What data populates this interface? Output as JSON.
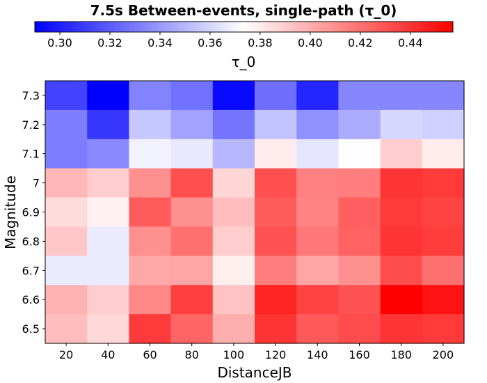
{
  "chart_data": {
    "type": "heatmap",
    "title": "7.5s Between-events, single-path (τ_0)",
    "xlabel": "DistanceJB",
    "ylabel": "Magnitude",
    "x_categories": [
      "20",
      "40",
      "60",
      "80",
      "100",
      "120",
      "140",
      "160",
      "180",
      "200"
    ],
    "y_categories": [
      "7.3",
      "7.2",
      "7.1",
      "7",
      "6.9",
      "6.8",
      "6.7",
      "6.6",
      "6.5"
    ],
    "values": [
      [
        0.312,
        0.29,
        0.333,
        0.327,
        0.293,
        0.326,
        0.302,
        0.334,
        0.334,
        0.334
      ],
      [
        0.331,
        0.308,
        0.355,
        0.343,
        0.328,
        0.354,
        0.337,
        0.346,
        0.36,
        0.358
      ],
      [
        0.331,
        0.335,
        0.369,
        0.366,
        0.35,
        0.38,
        0.365,
        0.373,
        0.39,
        0.38
      ],
      [
        0.397,
        0.39,
        0.41,
        0.431,
        0.387,
        0.431,
        0.415,
        0.416,
        0.44,
        0.438
      ],
      [
        0.385,
        0.378,
        0.427,
        0.41,
        0.395,
        0.427,
        0.414,
        0.426,
        0.438,
        0.435
      ],
      [
        0.392,
        0.367,
        0.41,
        0.42,
        0.39,
        0.43,
        0.418,
        0.425,
        0.44,
        0.437
      ],
      [
        0.367,
        0.367,
        0.402,
        0.403,
        0.379,
        0.416,
        0.403,
        0.41,
        0.432,
        0.42
      ],
      [
        0.398,
        0.39,
        0.412,
        0.436,
        0.393,
        0.445,
        0.435,
        0.43,
        0.457,
        0.451
      ],
      [
        0.395,
        0.386,
        0.438,
        0.424,
        0.4,
        0.44,
        0.428,
        0.432,
        0.44,
        0.438
      ]
    ],
    "colorbar": {
      "label": "τ_0",
      "ticks": [
        "0.30",
        "0.32",
        "0.34",
        "0.36",
        "0.38",
        "0.40",
        "0.42",
        "0.44"
      ],
      "range": [
        0.29,
        0.457
      ],
      "low_color": "#0000ff",
      "mid_color": "#ffffff",
      "high_color": "#ff0000",
      "position": "top"
    },
    "grid": false
  }
}
